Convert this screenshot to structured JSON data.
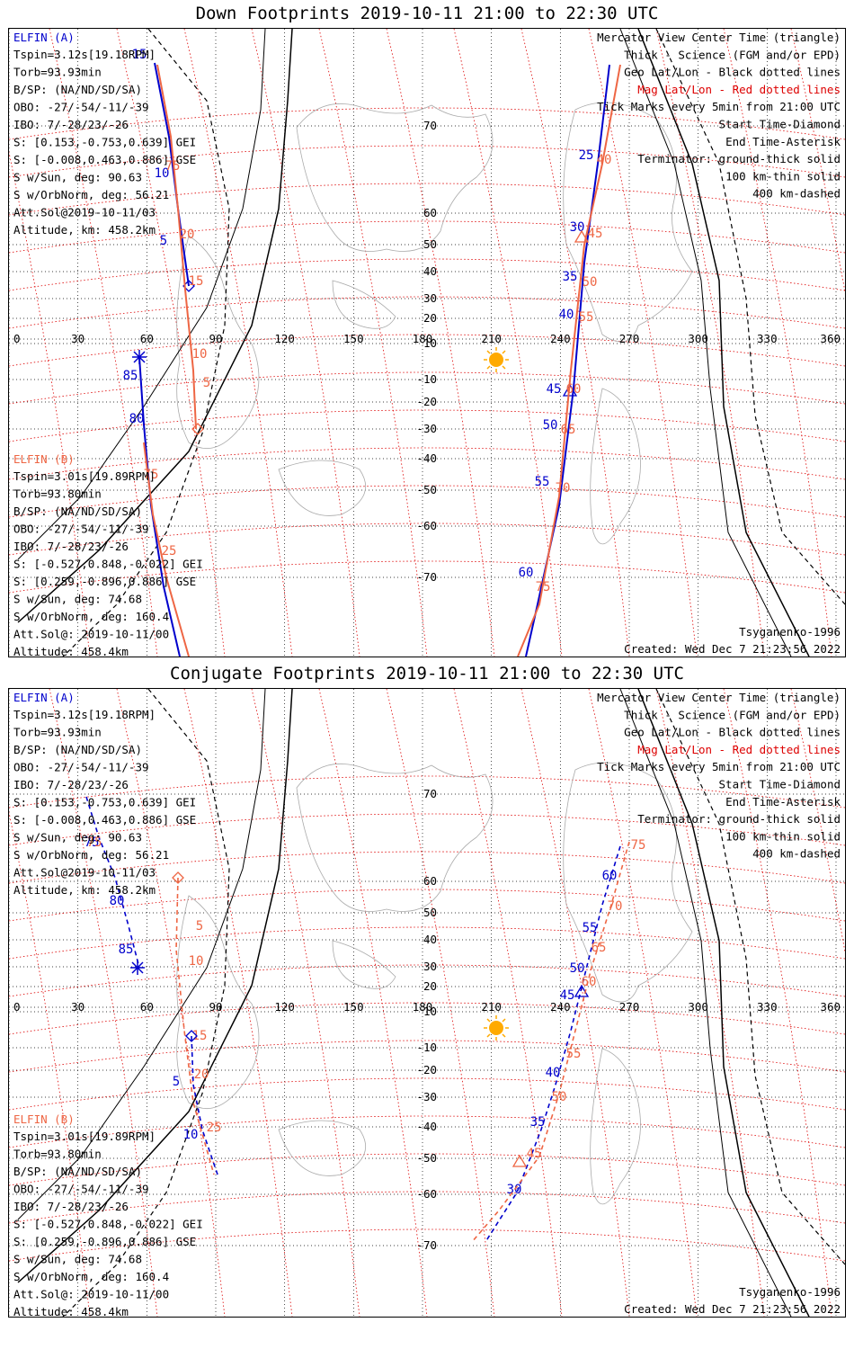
{
  "panels": [
    {
      "id": "down",
      "title": "Down Footprints 2019-10-11 21:00 to 22:30 UTC",
      "sat_a": {
        "header": "ELFIN (A)",
        "lines": [
          "Tspin=3.12s[19.18RPM]",
          "Torb=93.93min",
          "B/SP: (NA/ND/SD/SA)",
          "OBO: -27/-54/-11/-39",
          "IBO: 7/-28/23/-26",
          "S: [0.153,-0.753,0.639] GEI",
          "S: [-0.008,0.463,0.886] GSE",
          "S w/Sun, deg: 90.63",
          "S w/OrbNorm, deg: 56.21",
          "Att.Sol@2019-10-11/03",
          "Altitude, km: 458.2km"
        ]
      },
      "sat_b": {
        "header": "ELFIN (B)",
        "lines": [
          "Tspin=3.01s[19.89RPM]",
          "Torb=93.80min",
          "B/SP: (NA/ND/SD/SA)",
          "OBO: -27/-54/-11/-39",
          "IBO: 7/-28/23/-26",
          "S: [-0.527,0.848,-0.022] GEI",
          "S: [0.259,-0.896,0.886] GSE",
          "S w/Sun, deg: 74.68",
          "S w/OrbNorm, deg: 160.4",
          "Att.Sol@: 2019-10-11/00",
          "Altitude: 458.4km"
        ]
      },
      "footer_right_1": "Tsyganenko-1996",
      "footer_right_2": "Created: Wed Dec  7 21:23:56 2022"
    },
    {
      "id": "conjugate",
      "title": "Conjugate Footprints 2019-10-11 21:00 to 22:30 UTC",
      "sat_a": {
        "header": "ELFIN (A)",
        "lines": [
          "Tspin=3.12s[19.18RPM]",
          "Torb=93.93min",
          "B/SP: (NA/ND/SD/SA)",
          "OBO: -27/-54/-11/-39",
          "IBO: 7/-28/23/-26",
          "S: [0.153,-0.753,0.639] GEI",
          "S: [-0.008,0.463,0.886] GSE",
          "S w/Sun, deg: 90.63",
          "S w/OrbNorm, deg: 56.21",
          "Att.Sol@2019-10-11/03",
          "Altitude, km: 458.2km"
        ]
      },
      "sat_b": {
        "header": "ELFIN (B)",
        "lines": [
          "Tspin=3.01s[19.89RPM]",
          "Torb=93.80min",
          "B/SP: (NA/ND/SD/SA)",
          "OBO: -27/-54/-11/-39",
          "IBO: 7/-28/23/-26",
          "S: [-0.527,0.848,-0.022] GEI",
          "S: [0.259,-0.896,0.886] GSE",
          "S w/Sun, deg: 74.68",
          "S w/OrbNorm, deg: 160.4",
          "Att.Sol@: 2019-10-11/00",
          "Altitude: 458.4km"
        ]
      },
      "footer_right_1": "Tsyganenko-1996",
      "footer_right_2": "Created: Wed Dec  7 21:23:56 2022"
    }
  ],
  "legend": [
    "Mercator View Center Time (triangle)",
    "Thick - Science (FGM and/or EPD)",
    "Geo Lat/Lon - Black dotted lines",
    "Mag Lat/Lon - Red dotted lines",
    "Tick Marks every 5min from 21:00 UTC",
    "Start Time-Diamond",
    "End Time-Asterisk",
    "Terminator: ground-thick solid",
    "100 km-thin solid",
    "400 km-dashed"
  ],
  "lon_labels": [
    "0",
    "30",
    "60",
    "90",
    "120",
    "150",
    "180",
    "210",
    "240",
    "270",
    "300",
    "330",
    "360"
  ],
  "lat_labels": [
    "70",
    "60",
    "50",
    "40",
    "30",
    "20",
    "10",
    "-10",
    "-20",
    "-30",
    "-40",
    "-50",
    "-60",
    "-70"
  ],
  "colors": {
    "sat_a": "#0000cc",
    "sat_b": "#ee6644",
    "geo_grid": "#000000",
    "mag_grid": "#dd0000",
    "sun": "#ffaa00",
    "coast": "#aaaaaa"
  },
  "down_a_ticks": [
    "15",
    "10",
    "5",
    "85",
    "80",
    "25",
    "30",
    "35",
    "40",
    "45",
    "50",
    "55",
    "60"
  ],
  "down_b_ticks": [
    "75",
    "20",
    "25",
    "30",
    "35",
    "15",
    "10",
    "5",
    "40",
    "45",
    "50",
    "55",
    "60",
    "65",
    "70",
    "75"
  ],
  "conj_a_ticks": [
    "75",
    "80",
    "85",
    "5",
    "10",
    "60",
    "55",
    "50",
    "45",
    "40",
    "35",
    "30"
  ],
  "conj_b_ticks": [
    "5",
    "10",
    "15",
    "20",
    "25",
    "75",
    "70",
    "65",
    "60",
    "55",
    "50",
    "45"
  ]
}
